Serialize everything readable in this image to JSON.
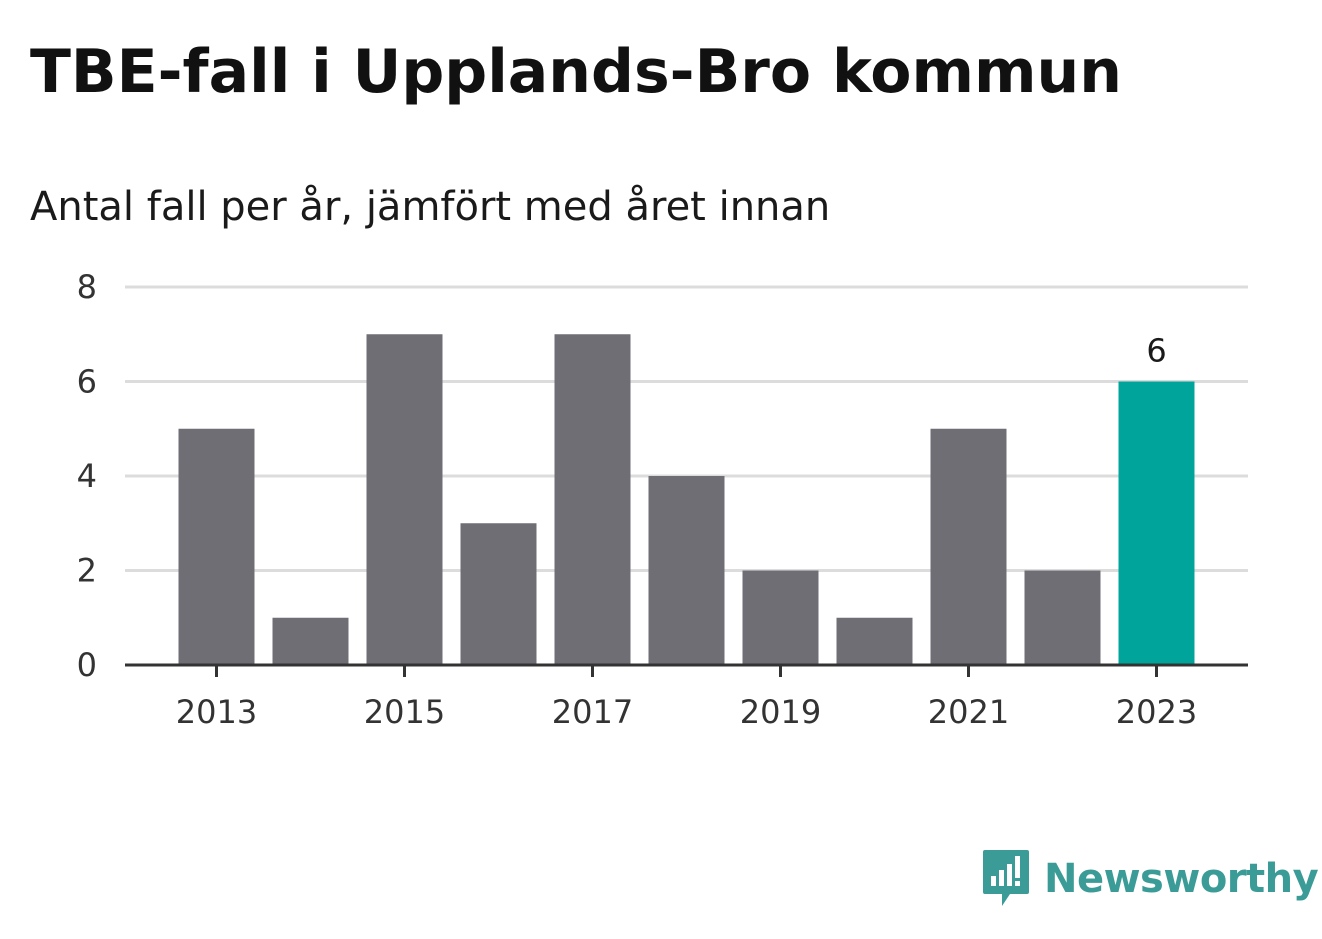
{
  "title": "TBE-fall i Upplands-Bro kommun",
  "subtitle": "Antal fall per år, jämfört med året innan",
  "brand": {
    "name": "Newsworthy",
    "icon": "newsworthy-logo-icon",
    "color": "#3b9c97"
  },
  "chart_data": {
    "type": "bar",
    "categories": [
      "2013",
      "2014",
      "2015",
      "2016",
      "2017",
      "2018",
      "2019",
      "2020",
      "2021",
      "2022",
      "2023"
    ],
    "values": [
      5,
      1,
      7,
      3,
      7,
      4,
      2,
      1,
      5,
      2,
      6
    ],
    "x_tick_labels": [
      "2013",
      "2015",
      "2017",
      "2019",
      "2021",
      "2023"
    ],
    "y_ticks": [
      0,
      2,
      4,
      6,
      8
    ],
    "ylim": [
      0,
      8
    ],
    "highlight": {
      "category": "2023",
      "label": "6"
    },
    "colors": {
      "bar": "#6f6e74",
      "highlight": "#00a49a",
      "grid": "#dcdcdc",
      "axis": "#333333"
    },
    "grid": true
  }
}
